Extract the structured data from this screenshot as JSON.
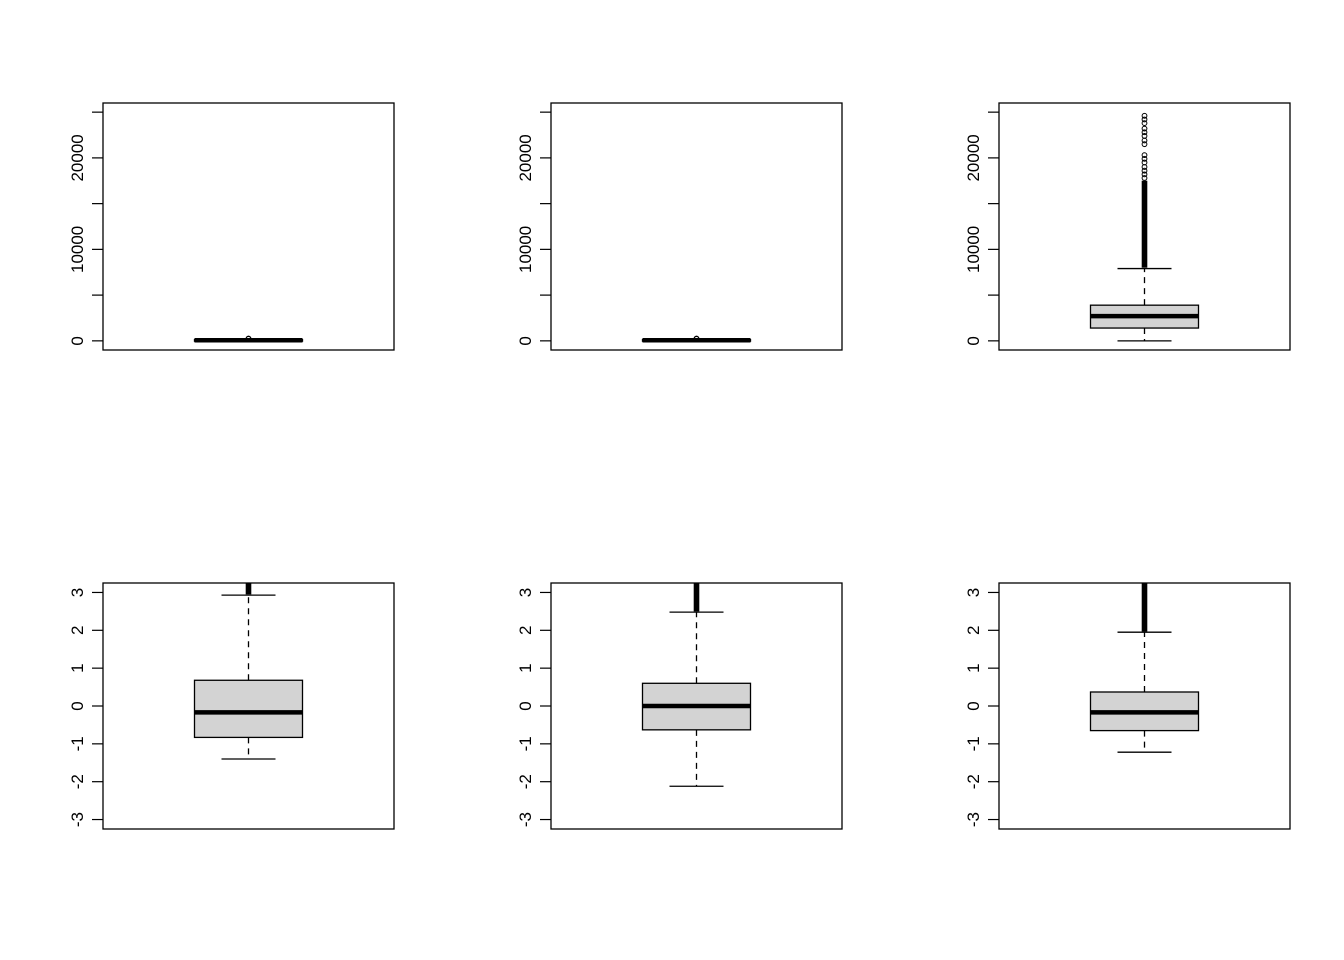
{
  "chart_data": [
    {
      "type": "boxplot",
      "title": "",
      "xlabel": "",
      "ylabel": "",
      "ylim": [
        -1000,
        26000
      ],
      "yticks": [
        0,
        5000,
        10000,
        15000,
        20000,
        25000
      ],
      "ytick_labels": [
        "0",
        "",
        "10000",
        "",
        "20000",
        ""
      ],
      "box": {
        "min": 0,
        "q1": 20,
        "median": 60,
        "q3": 130,
        "max": 200
      },
      "outliers": [
        210,
        230,
        250
      ],
      "colors": {
        "box_fill": "#d3d3d3",
        "stroke": "#000000"
      }
    },
    {
      "type": "boxplot",
      "title": "",
      "xlabel": "",
      "ylabel": "",
      "ylim": [
        -1000,
        26000
      ],
      "yticks": [
        0,
        5000,
        10000,
        15000,
        20000,
        25000
      ],
      "ytick_labels": [
        "0",
        "",
        "10000",
        "",
        "20000",
        ""
      ],
      "box": {
        "min": 0,
        "q1": 20,
        "median": 60,
        "q3": 130,
        "max": 200
      },
      "outliers": [
        210,
        230,
        250
      ],
      "colors": {
        "box_fill": "#d3d3d3",
        "stroke": "#000000"
      }
    },
    {
      "type": "boxplot",
      "title": "",
      "xlabel": "",
      "ylabel": "",
      "ylim": [
        -1000,
        26000
      ],
      "yticks": [
        0,
        5000,
        10000,
        15000,
        20000,
        25000
      ],
      "ytick_labels": [
        "0",
        "",
        "10000",
        "",
        "20000",
        ""
      ],
      "box": {
        "min": 0,
        "q1": 1400,
        "median": 2700,
        "q3": 3900,
        "max": 7900
      },
      "outliers_dense": [
        8000,
        17500
      ],
      "outliers": [
        17800,
        18200,
        18600,
        19000,
        19500,
        19900,
        20300,
        21500,
        21900,
        22400,
        22800,
        23200,
        23800,
        24200,
        24600
      ],
      "colors": {
        "box_fill": "#d3d3d3",
        "stroke": "#000000"
      }
    },
    {
      "type": "boxplot",
      "title": "",
      "xlabel": "",
      "ylabel": "",
      "ylim": [
        -3.25,
        3.25
      ],
      "yticks": [
        -3,
        -2,
        -1,
        0,
        1,
        2,
        3
      ],
      "ytick_labels": [
        "-3",
        "-2",
        "-1",
        "0",
        "1",
        "2",
        "3"
      ],
      "box": {
        "min": -1.4,
        "q1": -0.83,
        "median": -0.17,
        "q3": 0.68,
        "max": 2.93
      },
      "outliers_dense": [
        2.95,
        3.25
      ],
      "outliers": [],
      "colors": {
        "box_fill": "#d3d3d3",
        "stroke": "#000000"
      }
    },
    {
      "type": "boxplot",
      "title": "",
      "xlabel": "",
      "ylabel": "",
      "ylim": [
        -3.25,
        3.25
      ],
      "yticks": [
        -3,
        -2,
        -1,
        0,
        1,
        2,
        3
      ],
      "ytick_labels": [
        "-3",
        "-2",
        "-1",
        "0",
        "1",
        "2",
        "3"
      ],
      "box": {
        "min": -2.12,
        "q1": -0.63,
        "median": 0.0,
        "q3": 0.6,
        "max": 2.48
      },
      "outliers_dense": [
        2.5,
        3.25
      ],
      "outliers": [],
      "colors": {
        "box_fill": "#d3d3d3",
        "stroke": "#000000"
      }
    },
    {
      "type": "boxplot",
      "title": "",
      "xlabel": "",
      "ylabel": "",
      "ylim": [
        -3.25,
        3.25
      ],
      "yticks": [
        -3,
        -2,
        -1,
        0,
        1,
        2,
        3
      ],
      "ytick_labels": [
        "-3",
        "-2",
        "-1",
        "0",
        "1",
        "2",
        "3"
      ],
      "box": {
        "min": -1.22,
        "q1": -0.65,
        "median": -0.17,
        "q3": 0.37,
        "max": 1.95
      },
      "outliers_dense": [
        1.97,
        3.25
      ],
      "outliers": [],
      "colors": {
        "box_fill": "#d3d3d3",
        "stroke": "#000000"
      }
    }
  ]
}
